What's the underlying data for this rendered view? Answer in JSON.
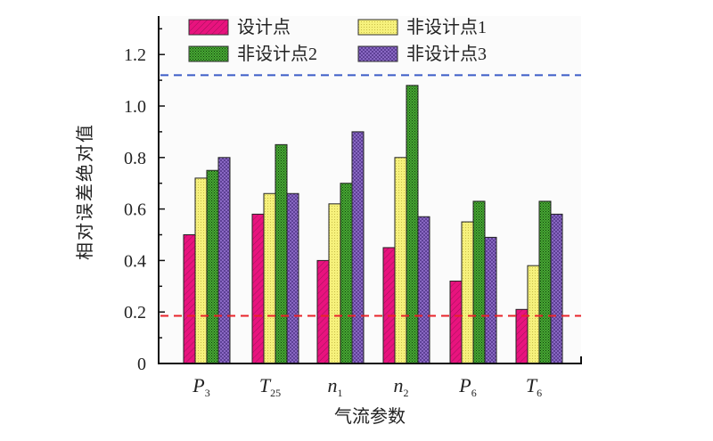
{
  "chart_data": {
    "type": "bar",
    "title": "",
    "xlabel": "气流参数",
    "ylabel": "相对误差绝对值",
    "ylim": [
      0,
      1.3
    ],
    "yticks": [
      "0",
      "0.2",
      "0.4",
      "0.6",
      "0.8",
      "1.0",
      "1.2"
    ],
    "ytick_values": [
      0,
      0.2,
      0.4,
      0.6,
      0.8,
      1.0,
      1.2
    ],
    "categories": [
      {
        "base": "P",
        "sub": "3"
      },
      {
        "base": "T",
        "sub": "25"
      },
      {
        "base": "n",
        "sub": "1"
      },
      {
        "base": "n",
        "sub": "2"
      },
      {
        "base": "P",
        "sub": "6"
      },
      {
        "base": "T",
        "sub": "6"
      }
    ],
    "series": [
      {
        "name": "设计点",
        "color": "#e8137e",
        "pattern": "hatch",
        "values": [
          0.5,
          0.58,
          0.4,
          0.45,
          0.32,
          0.21
        ]
      },
      {
        "name": "非设计点1",
        "color": "#f4ef7a",
        "pattern": "dots",
        "values": [
          0.72,
          0.66,
          0.62,
          0.8,
          0.55,
          0.38
        ]
      },
      {
        "name": "非设计点2",
        "color": "#3d9a2a",
        "pattern": "dense",
        "values": [
          0.75,
          0.85,
          0.7,
          1.08,
          0.63,
          0.63
        ]
      },
      {
        "name": "非设计点3",
        "color": "#8a63c4",
        "pattern": "cross",
        "values": [
          0.8,
          0.66,
          0.9,
          0.57,
          0.49,
          0.58
        ]
      }
    ],
    "reference_lines": [
      {
        "value": 1.12,
        "color": "#3a5bc7",
        "style": "dashed"
      },
      {
        "value": 0.185,
        "color": "#e8232a",
        "style": "dashed"
      }
    ],
    "legend": "top",
    "grid": false
  }
}
